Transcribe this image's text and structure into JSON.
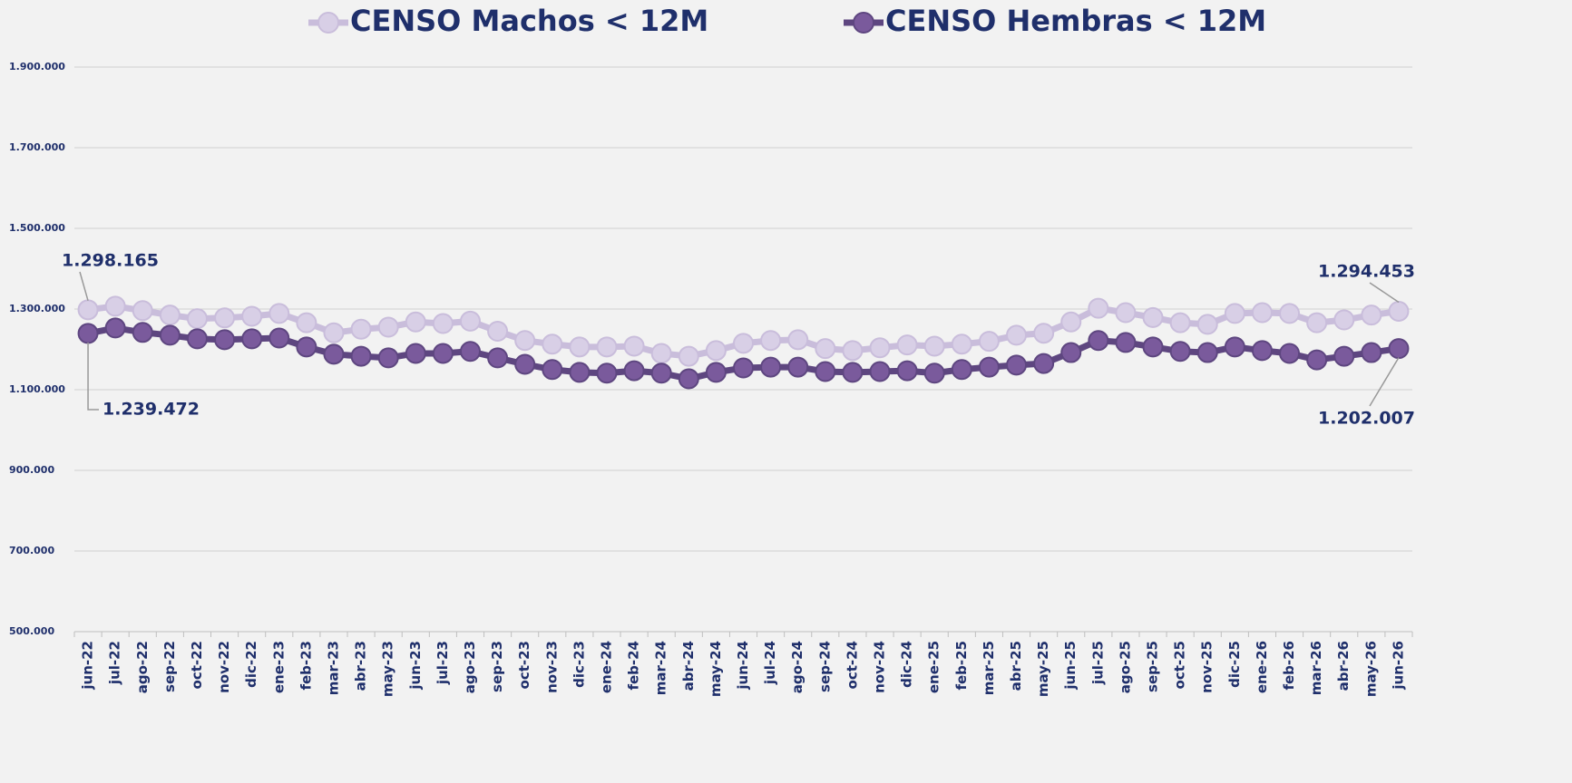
{
  "chart_data": {
    "type": "line",
    "categories": [
      "jun-22",
      "jul-22",
      "ago-22",
      "sep-22",
      "oct-22",
      "nov-22",
      "dic-22",
      "ene-23",
      "feb-23",
      "mar-23",
      "abr-23",
      "may-23",
      "jun-23",
      "jul-23",
      "ago-23",
      "sep-23",
      "oct-23",
      "nov-23",
      "dic-23",
      "ene-24",
      "feb-24",
      "mar-24",
      "abr-24",
      "may-24",
      "jun-24",
      "jul-24",
      "ago-24",
      "sep-24",
      "oct-24",
      "nov-24",
      "dic-24",
      "ene-25",
      "feb-25",
      "mar-25",
      "abr-25",
      "may-25",
      "jun-25",
      "jul-25",
      "ago-25",
      "sep-25",
      "oct-25",
      "nov-25",
      "dic-25",
      "ene-26",
      "feb-26",
      "mar-26",
      "abr-26",
      "may-26",
      "jun-26"
    ],
    "series": [
      {
        "name": "CENSO Machos  < 12M",
        "color": "#c9bddb",
        "marker_fill": "#d8cfe6",
        "values": [
          1298165,
          1307000,
          1296000,
          1285000,
          1276000,
          1278000,
          1282000,
          1289000,
          1266000,
          1241000,
          1250000,
          1255000,
          1268000,
          1264000,
          1270000,
          1245000,
          1222000,
          1213000,
          1206000,
          1206000,
          1208000,
          1190000,
          1183000,
          1197000,
          1215000,
          1222000,
          1224000,
          1202000,
          1197000,
          1204000,
          1211000,
          1208000,
          1213000,
          1220000,
          1235000,
          1240000,
          1268000,
          1302000,
          1291000,
          1279000,
          1266000,
          1262000,
          1289000,
          1291000,
          1289000,
          1266000,
          1273000,
          1285000,
          1294453
        ],
        "value_labels": [
          "1.298.165",
          null,
          null,
          null,
          null,
          null,
          null,
          null,
          null,
          null,
          null,
          null,
          null,
          null,
          null,
          null,
          null,
          null,
          null,
          null,
          null,
          null,
          null,
          null,
          null,
          null,
          null,
          null,
          null,
          null,
          null,
          null,
          null,
          null,
          null,
          null,
          null,
          null,
          null,
          null,
          null,
          null,
          null,
          null,
          null,
          null,
          null,
          null,
          "1.294.453"
        ]
      },
      {
        "name": "CENSO Hembras < 12M",
        "color": "#5e4680",
        "marker_fill": "#7a5a9c",
        "values": [
          1239472,
          1253000,
          1242000,
          1235000,
          1226000,
          1224000,
          1226000,
          1228000,
          1206000,
          1188000,
          1183000,
          1179000,
          1190000,
          1190000,
          1195000,
          1179000,
          1163000,
          1150000,
          1143000,
          1141000,
          1147000,
          1141000,
          1127000,
          1143000,
          1154000,
          1156000,
          1156000,
          1145000,
          1143000,
          1145000,
          1147000,
          1141000,
          1150000,
          1156000,
          1161000,
          1165000,
          1192000,
          1222000,
          1217000,
          1206000,
          1195000,
          1192000,
          1206000,
          1197000,
          1190000,
          1174000,
          1183000,
          1192000,
          1202007
        ],
        "value_labels": [
          "1.239.472",
          null,
          null,
          null,
          null,
          null,
          null,
          null,
          null,
          null,
          null,
          null,
          null,
          null,
          null,
          null,
          null,
          null,
          null,
          null,
          null,
          null,
          null,
          null,
          null,
          null,
          null,
          null,
          null,
          null,
          null,
          null,
          null,
          null,
          null,
          null,
          null,
          null,
          null,
          null,
          null,
          null,
          null,
          null,
          null,
          null,
          null,
          null,
          "1.202.007"
        ]
      }
    ],
    "ylim": [
      500000,
      1900000
    ],
    "yticks": [
      {
        "value": 500000,
        "label": "500.000"
      },
      {
        "value": 700000,
        "label": "700.000"
      },
      {
        "value": 900000,
        "label": "900.000"
      },
      {
        "value": 1100000,
        "label": "1.100.000"
      },
      {
        "value": 1300000,
        "label": "1.300.000"
      },
      {
        "value": 1500000,
        "label": "1.500.000"
      },
      {
        "value": 1700000,
        "label": "1.700.000"
      },
      {
        "value": 1900000,
        "label": "1.900.000"
      }
    ],
    "grid": true,
    "legend": "top"
  }
}
